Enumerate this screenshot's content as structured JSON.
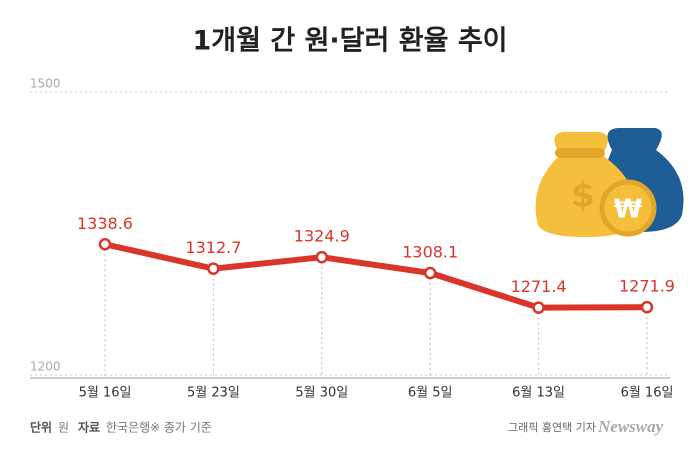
{
  "chart_data": {
    "type": "line",
    "title": "1개월 간 원·달러 환율 추이",
    "categories": [
      "5월 16일",
      "5월 23일",
      "5월 30일",
      "6월 5일",
      "6월 13일",
      "6월 16일"
    ],
    "values": [
      1338.6,
      1312.7,
      1324.9,
      1308.1,
      1271.4,
      1271.9
    ],
    "color": "#d9352a",
    "ylim": [
      1200,
      1500
    ],
    "yticks": [
      1200,
      1500
    ],
    "grid": true
  },
  "footer": {
    "unit_label": "단위",
    "unit": "원",
    "source_label": "자료",
    "source": "한국은행",
    "note": "※ 종가 기준",
    "credit": "그래픽 홍연택 기자",
    "brand": "Newsway"
  }
}
